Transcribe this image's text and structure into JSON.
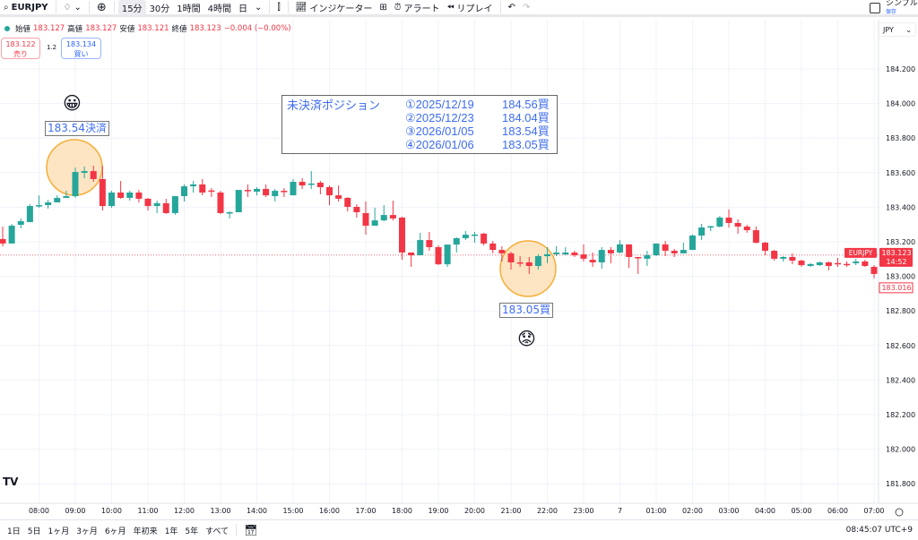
{
  "toolbar": {
    "symbol": "EURJPY",
    "intervals": [
      "15分",
      "30分",
      "1時間",
      "4時間",
      "日"
    ],
    "active_interval": "15分",
    "indicators_label": "インジケーター",
    "alert_label": "アラート",
    "replay_label": "リプレイ",
    "simple_label": "シンプル",
    "save_label": "保存"
  },
  "legend": {
    "open_label": "始値",
    "open": "183.127",
    "high_label": "高値",
    "high": "183.127",
    "low_label": "安値",
    "low": "183.121",
    "close_label": "終値",
    "close": "183.123",
    "change": "−0.004 (−0.00%)"
  },
  "trade": {
    "sell_price": "183.122",
    "sell_label": "売り",
    "spread": "1.2",
    "buy_price": "183.134",
    "buy_label": "買い"
  },
  "currency": "JPY",
  "info_box": {
    "title": "未決済ポジション",
    "positions": [
      {
        "date": "①2025/12/19",
        "price": "184.56買"
      },
      {
        "date": "②2025/12/23",
        "price": "184.04買"
      },
      {
        "date": "③2026/01/05",
        "price": "183.54買"
      },
      {
        "date": "④2026/01/06",
        "price": "183.05買"
      }
    ]
  },
  "annotations": {
    "exit_label": "183.54決済",
    "buy_label": "183.05買",
    "exit_emoji": "😀",
    "buy_emoji": "😟",
    "circle_color": "#f5a623"
  },
  "bottombar": {
    "ranges": [
      "1日",
      "5日",
      "1ヶ月",
      "3ヶ月",
      "6ヶ月",
      "年初来",
      "1年",
      "5年",
      "すべて"
    ],
    "clock": "08:45:07 UTC+9"
  },
  "colors": {
    "up": "#26a69a",
    "down": "#f23645",
    "accent": "#2962ff"
  },
  "chart_data": {
    "type": "candlestick",
    "symbol": "EURJPY",
    "interval": "15分",
    "ylim": [
      181.72,
      184.44
    ],
    "y_ticks": [
      "184.200",
      "184.000",
      "183.800",
      "183.600",
      "183.400",
      "183.200",
      "183.000",
      "182.800",
      "182.600",
      "182.400",
      "182.200",
      "182.000",
      "181.800"
    ],
    "x_ticks": [
      "08:00",
      "09:00",
      "10:00",
      "11:00",
      "12:00",
      "13:00",
      "14:00",
      "15:00",
      "16:00",
      "17:00",
      "18:00",
      "19:00",
      "20:00",
      "21:00",
      "22:00",
      "23:00",
      "7",
      "01:00",
      "02:00",
      "03:00",
      "04:00",
      "05:00",
      "06:00",
      "07:00"
    ],
    "last_price": "183.123",
    "countdown": "14:52",
    "low_marker": "183.016",
    "grid": true,
    "candles_ohlc": [
      [
        183.216,
        183.288,
        183.174,
        183.19
      ],
      [
        183.19,
        183.303,
        183.19,
        183.293
      ],
      [
        183.298,
        183.335,
        183.278,
        183.319
      ],
      [
        183.314,
        183.417,
        183.314,
        183.407
      ],
      [
        183.407,
        183.469,
        183.397,
        183.412
      ],
      [
        183.412,
        183.443,
        183.392,
        183.428
      ],
      [
        183.428,
        183.469,
        183.428,
        183.454
      ],
      [
        183.454,
        183.495,
        183.454,
        183.464
      ],
      [
        183.464,
        183.63,
        183.454,
        183.604
      ],
      [
        183.599,
        183.635,
        183.568,
        183.609
      ],
      [
        183.609,
        183.64,
        183.547,
        183.563
      ],
      [
        183.563,
        183.64,
        183.381,
        183.407
      ],
      [
        183.407,
        183.495,
        183.397,
        183.485
      ],
      [
        183.485,
        183.552,
        183.449,
        183.454
      ],
      [
        183.454,
        183.495,
        183.438,
        183.485
      ],
      [
        183.485,
        183.5,
        183.428,
        183.449
      ],
      [
        183.449,
        183.454,
        183.381,
        183.407
      ],
      [
        183.407,
        183.438,
        183.366,
        183.423
      ],
      [
        183.423,
        183.449,
        183.361,
        183.366
      ],
      [
        183.366,
        183.464,
        183.356,
        183.464
      ],
      [
        183.464,
        183.532,
        183.433,
        183.521
      ],
      [
        183.521,
        183.552,
        183.485,
        183.532
      ],
      [
        183.532,
        183.563,
        183.469,
        183.485
      ],
      [
        183.497,
        183.511,
        183.459,
        183.49
      ],
      [
        183.485,
        183.495,
        183.361,
        183.366
      ],
      [
        183.366,
        183.376,
        183.335,
        183.371
      ],
      [
        183.371,
        183.5,
        183.371,
        183.5
      ],
      [
        183.5,
        183.532,
        183.459,
        183.498
      ],
      [
        183.49,
        183.516,
        183.469,
        183.506
      ],
      [
        183.506,
        183.532,
        183.459,
        183.469
      ],
      [
        183.464,
        183.506,
        183.433,
        183.495
      ],
      [
        183.495,
        183.511,
        183.459,
        183.49
      ],
      [
        183.469,
        183.563,
        183.469,
        183.547
      ],
      [
        183.547,
        183.568,
        183.506,
        183.526
      ],
      [
        183.532,
        183.609,
        183.506,
        183.537
      ],
      [
        183.542,
        183.552,
        183.475,
        183.516
      ],
      [
        183.516,
        183.526,
        183.412,
        183.469
      ],
      [
        183.469,
        183.526,
        183.433,
        183.449
      ],
      [
        183.454,
        183.459,
        183.376,
        183.402
      ],
      [
        183.402,
        183.417,
        183.34,
        183.371
      ],
      [
        183.366,
        183.433,
        183.241,
        183.293
      ],
      [
        183.293,
        183.397,
        183.293,
        183.324
      ],
      [
        183.324,
        183.412,
        183.319,
        183.355
      ],
      [
        183.355,
        183.438,
        183.324,
        183.335
      ],
      [
        183.34,
        183.345,
        183.096,
        183.138
      ],
      [
        183.138,
        183.138,
        183.055,
        183.122
      ],
      [
        183.122,
        183.252,
        183.122,
        183.21
      ],
      [
        183.21,
        183.257,
        183.148,
        183.169
      ],
      [
        183.169,
        183.179,
        183.065,
        183.07
      ],
      [
        183.07,
        183.184,
        183.055,
        183.184
      ],
      [
        183.184,
        183.226,
        183.138,
        183.221
      ],
      [
        183.221,
        183.262,
        183.21,
        183.241
      ],
      [
        183.24,
        183.257,
        183.195,
        183.242
      ],
      [
        183.247,
        183.252,
        183.179,
        183.19
      ],
      [
        183.19,
        183.205,
        183.133,
        183.153
      ],
      [
        183.153,
        183.174,
        183.086,
        183.133
      ],
      [
        183.133,
        183.143,
        183.039,
        183.081
      ],
      [
        183.081,
        183.117,
        183.055,
        183.079
      ],
      [
        183.081,
        183.112,
        183.014,
        183.06
      ],
      [
        183.06,
        183.128,
        183.039,
        183.117
      ],
      [
        183.117,
        183.169,
        183.076,
        183.128
      ],
      [
        183.128,
        183.174,
        183.117,
        183.138
      ],
      [
        183.127,
        183.169,
        183.122,
        183.138
      ],
      [
        183.138,
        183.148,
        183.112,
        183.122
      ],
      [
        183.127,
        183.185,
        183.086,
        183.102
      ],
      [
        183.096,
        183.138,
        183.055,
        183.081
      ],
      [
        183.081,
        183.169,
        183.045,
        183.153
      ],
      [
        183.153,
        183.169,
        183.076,
        183.133
      ],
      [
        183.138,
        183.21,
        183.133,
        183.185
      ],
      [
        183.185,
        183.185,
        183.049,
        183.112
      ],
      [
        183.112,
        183.112,
        183.014,
        183.11
      ],
      [
        183.102,
        183.148,
        183.06,
        183.122
      ],
      [
        183.122,
        183.19,
        183.117,
        183.19
      ],
      [
        183.185,
        183.205,
        183.117,
        183.148
      ],
      [
        183.148,
        183.159,
        183.112,
        183.133
      ],
      [
        183.133,
        183.195,
        183.133,
        183.153
      ],
      [
        183.153,
        183.242,
        183.153,
        183.236
      ],
      [
        183.236,
        183.304,
        183.21,
        183.283
      ],
      [
        183.286,
        183.293,
        183.262,
        183.29
      ],
      [
        183.288,
        183.35,
        183.283,
        183.34
      ],
      [
        183.34,
        183.387,
        183.283,
        183.309
      ],
      [
        183.309,
        183.33,
        183.247,
        183.288
      ],
      [
        183.288,
        183.298,
        183.252,
        183.267
      ],
      [
        183.267,
        183.288,
        183.19,
        183.195
      ],
      [
        183.195,
        183.2,
        183.122,
        183.148
      ],
      [
        183.148,
        183.153,
        183.091,
        183.102
      ],
      [
        183.102,
        183.117,
        183.086,
        183.112
      ],
      [
        183.112,
        183.133,
        183.071,
        183.091
      ],
      [
        183.091,
        183.096,
        183.055,
        183.065
      ],
      [
        183.06,
        183.076,
        183.055,
        183.071
      ],
      [
        183.065,
        183.086,
        183.06,
        183.081
      ],
      [
        183.081,
        183.086,
        183.034,
        183.06
      ],
      [
        183.077,
        183.107,
        183.055,
        183.076
      ],
      [
        183.072,
        183.086,
        183.055,
        183.071
      ],
      [
        183.076,
        183.102,
        183.065,
        183.086
      ],
      [
        183.086,
        183.096,
        183.055,
        183.06
      ],
      [
        183.055,
        183.065,
        182.988,
        183.014
      ]
    ],
    "candle_format": [
      "open",
      "high",
      "low",
      "close"
    ],
    "first_candle_time": "07:00",
    "marked_points": [
      {
        "time": "09:00",
        "price": 183.54,
        "label": "183.54決済"
      },
      {
        "time": "21:30",
        "price": 183.05,
        "label": "183.05買"
      }
    ]
  }
}
